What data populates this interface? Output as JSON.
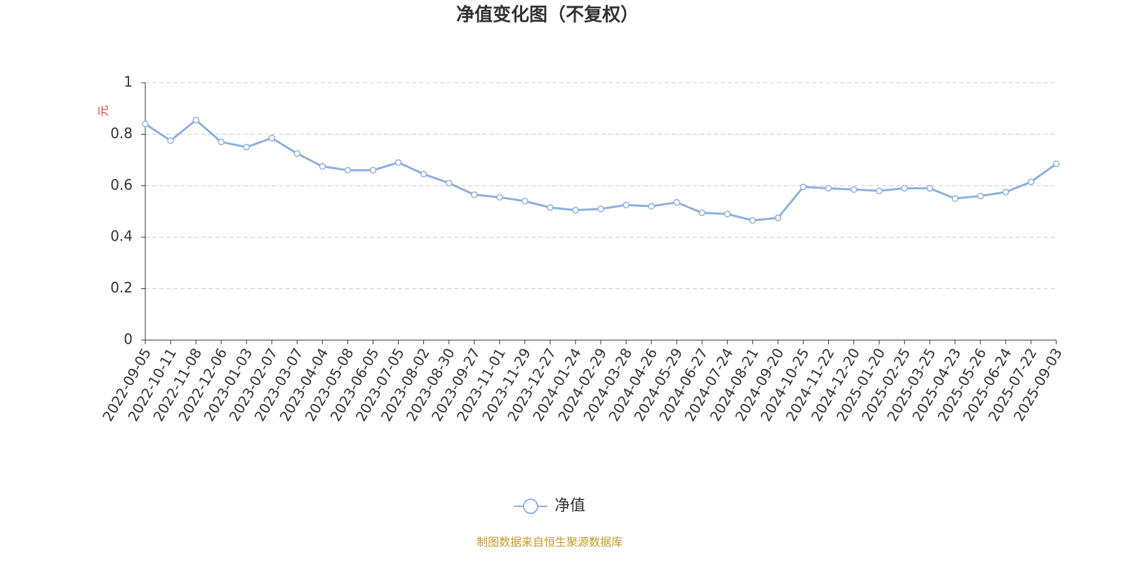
{
  "chart_data": {
    "type": "line",
    "title": "净值变化图（不复权）",
    "y_label": "元",
    "categories": [
      "2022-09-05",
      "2022-10-11",
      "2022-11-08",
      "2022-12-06",
      "2023-01-03",
      "2023-02-07",
      "2023-03-07",
      "2023-04-04",
      "2023-05-08",
      "2023-06-05",
      "2023-07-05",
      "2023-08-02",
      "2023-08-30",
      "2023-09-27",
      "2023-11-01",
      "2023-11-29",
      "2023-12-27",
      "2024-01-24",
      "2024-02-29",
      "2024-03-28",
      "2024-04-26",
      "2024-05-29",
      "2024-06-27",
      "2024-07-24",
      "2024-08-21",
      "2024-09-20",
      "2024-10-25",
      "2024-11-22",
      "2024-12-20",
      "2025-01-20",
      "2025-02-25",
      "2025-03-25",
      "2025-04-23",
      "2025-05-26",
      "2025-06-24",
      "2025-07-22",
      "2025-09-03"
    ],
    "series": [
      {
        "name": "净值",
        "color": "#8eb0dc",
        "values": [
          0.84,
          0.775,
          0.855,
          0.77,
          0.75,
          0.785,
          0.725,
          0.675,
          0.66,
          0.66,
          0.69,
          0.645,
          0.61,
          0.565,
          0.555,
          0.54,
          0.515,
          0.505,
          0.51,
          0.525,
          0.52,
          0.535,
          0.495,
          0.49,
          0.465,
          0.475,
          0.595,
          0.59,
          0.585,
          0.58,
          0.59,
          0.59,
          0.55,
          0.56,
          0.575,
          0.615,
          0.685
        ]
      }
    ],
    "ylim": [
      0,
      1
    ],
    "yticks": [
      0,
      0.2,
      0.4,
      0.6,
      0.8,
      1
    ],
    "grid": true,
    "legend": "bottom",
    "source": "制图数据来自恒生聚源数据库"
  }
}
